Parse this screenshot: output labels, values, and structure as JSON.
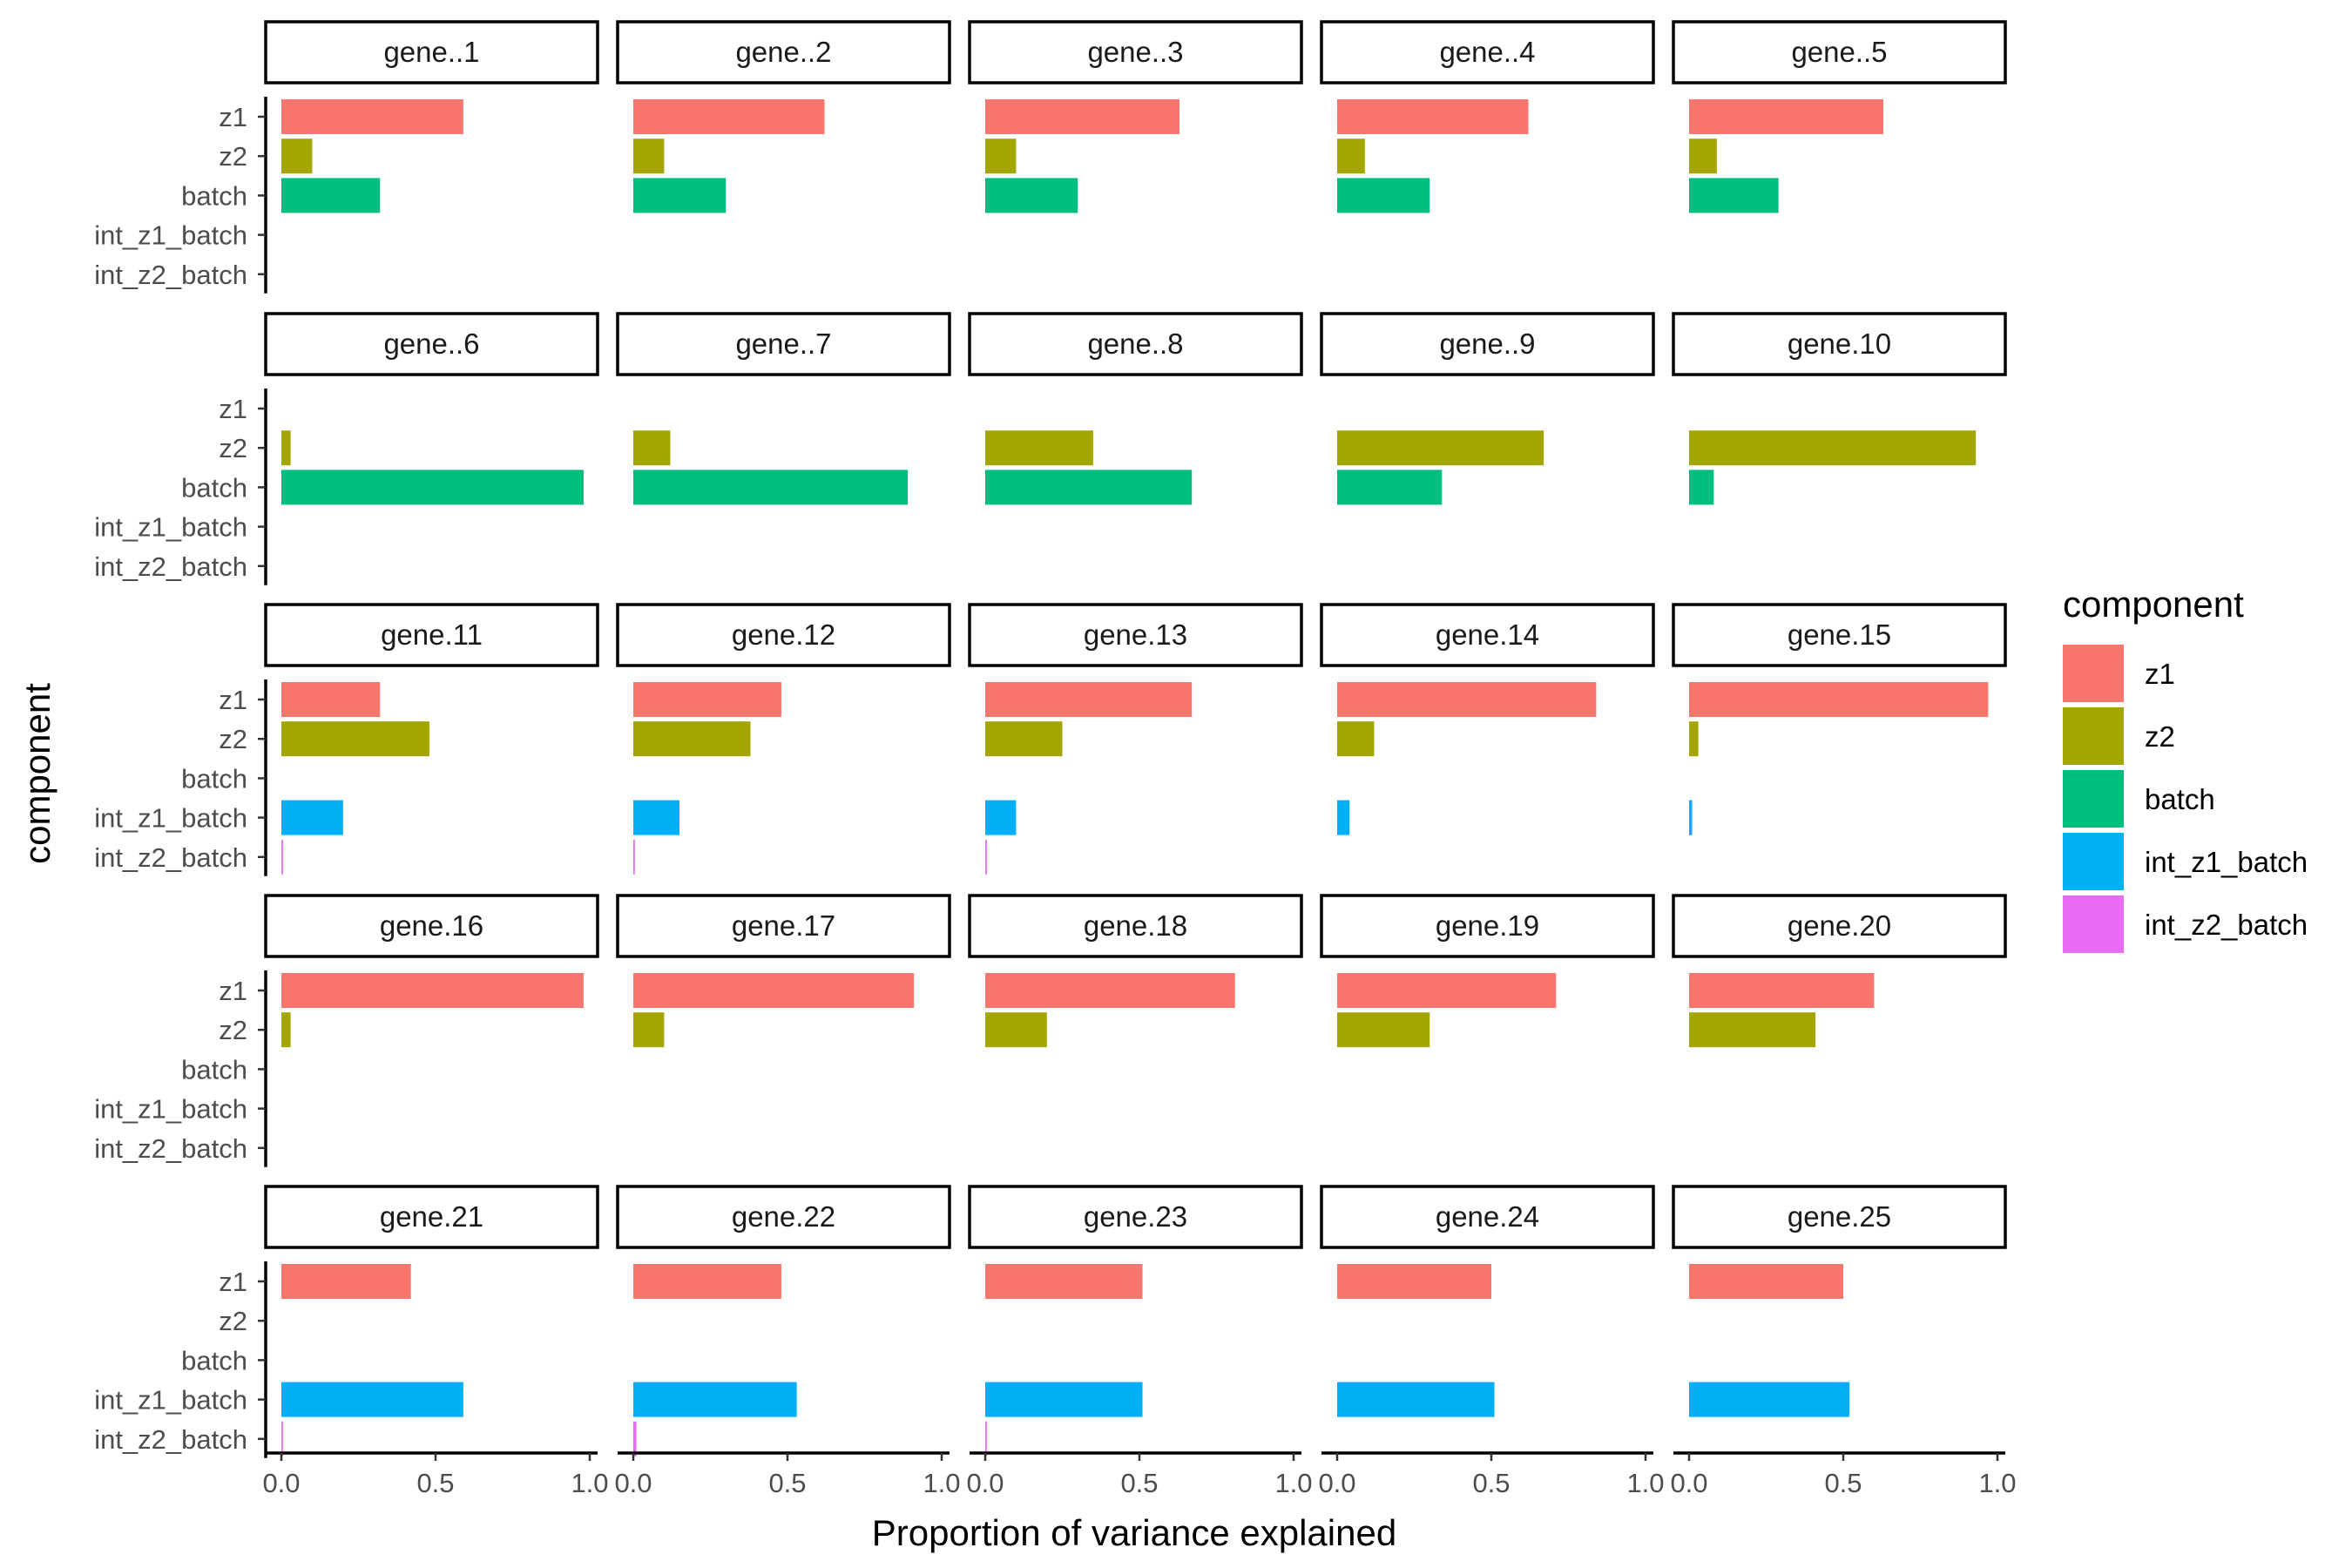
{
  "chart_data": {
    "type": "bar",
    "orientation": "horizontal",
    "facet_layout": "5x5 grid",
    "xlabel": "Proportion of variance explained",
    "ylabel": "component",
    "xlim": [
      0,
      1
    ],
    "x_ticks": [
      "0.0",
      "0.5",
      "1.0"
    ],
    "categories": [
      "z1",
      "z2",
      "batch",
      "int_z1_batch",
      "int_z2_batch"
    ],
    "colors": {
      "z1": "#F8766D",
      "z2": "#A3A500",
      "batch": "#00BF7D",
      "int_z1_batch": "#00B0F6",
      "int_z2_batch": "#E76BF3"
    },
    "legend": {
      "title": "component",
      "position": "right",
      "entries": [
        "z1",
        "z2",
        "batch",
        "int_z1_batch",
        "int_z2_batch"
      ]
    },
    "panels": [
      {
        "label": "gene..1",
        "values": [
          0.59,
          0.1,
          0.32,
          0,
          0
        ]
      },
      {
        "label": "gene..2",
        "values": [
          0.62,
          0.1,
          0.3,
          0,
          0
        ]
      },
      {
        "label": "gene..3",
        "values": [
          0.63,
          0.1,
          0.3,
          0,
          0
        ]
      },
      {
        "label": "gene..4",
        "values": [
          0.62,
          0.09,
          0.3,
          0,
          0
        ]
      },
      {
        "label": "gene..5",
        "values": [
          0.63,
          0.09,
          0.29,
          0,
          0
        ]
      },
      {
        "label": "gene..6",
        "values": [
          0,
          0.03,
          0.98,
          0,
          0
        ]
      },
      {
        "label": "gene..7",
        "values": [
          0,
          0.12,
          0.89,
          0,
          0
        ]
      },
      {
        "label": "gene..8",
        "values": [
          0,
          0.35,
          0.67,
          0,
          0
        ]
      },
      {
        "label": "gene..9",
        "values": [
          0,
          0.67,
          0.34,
          0,
          0
        ]
      },
      {
        "label": "gene.10",
        "values": [
          0,
          0.93,
          0.08,
          0,
          0
        ]
      },
      {
        "label": "gene.11",
        "values": [
          0.32,
          0.48,
          0,
          0.2,
          0.005
        ]
      },
      {
        "label": "gene.12",
        "values": [
          0.48,
          0.38,
          0,
          0.15,
          0.005
        ]
      },
      {
        "label": "gene.13",
        "values": [
          0.67,
          0.25,
          0,
          0.1,
          0.005
        ]
      },
      {
        "label": "gene.14",
        "values": [
          0.84,
          0.12,
          0,
          0.04,
          0
        ]
      },
      {
        "label": "gene.15",
        "values": [
          0.97,
          0.03,
          0,
          0.01,
          0
        ]
      },
      {
        "label": "gene.16",
        "values": [
          0.98,
          0.03,
          0,
          0,
          0
        ]
      },
      {
        "label": "gene.17",
        "values": [
          0.91,
          0.1,
          0,
          0,
          0
        ]
      },
      {
        "label": "gene.18",
        "values": [
          0.81,
          0.2,
          0,
          0,
          0
        ]
      },
      {
        "label": "gene.19",
        "values": [
          0.71,
          0.3,
          0,
          0,
          0
        ]
      },
      {
        "label": "gene.20",
        "values": [
          0.6,
          0.41,
          0,
          0,
          0
        ]
      },
      {
        "label": "gene.21",
        "values": [
          0.42,
          0,
          0,
          0.59,
          0.005
        ]
      },
      {
        "label": "gene.22",
        "values": [
          0.48,
          0,
          0,
          0.53,
          0.01
        ]
      },
      {
        "label": "gene.23",
        "values": [
          0.51,
          0,
          0,
          0.51,
          0.005
        ]
      },
      {
        "label": "gene.24",
        "values": [
          0.5,
          0,
          0,
          0.51,
          0
        ]
      },
      {
        "label": "gene.25",
        "values": [
          0.5,
          0,
          0,
          0.52,
          0
        ]
      }
    ]
  }
}
